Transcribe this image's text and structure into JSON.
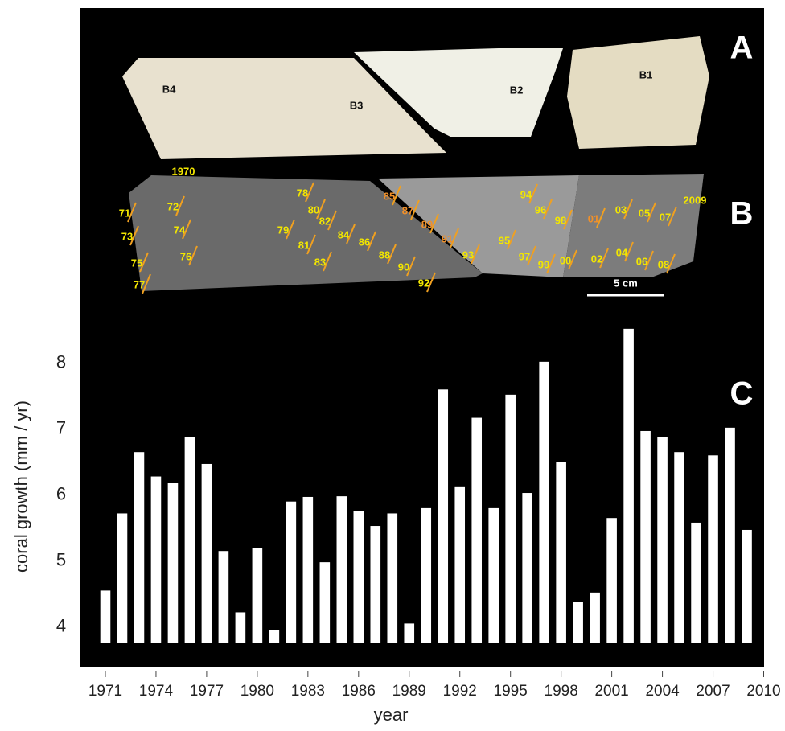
{
  "panel_a": {
    "label": "A",
    "labels": [
      "B4",
      "B3",
      "B2",
      "B1"
    ]
  },
  "panel_b": {
    "label": "B",
    "scale": "5 cm",
    "years": [
      "1970",
      "71",
      "72",
      "73",
      "74",
      "75",
      "76",
      "77",
      "78",
      "79",
      "80",
      "81",
      "82",
      "83",
      "84",
      "85",
      "86",
      "87",
      "88",
      "89",
      "90",
      "91",
      "92",
      "93",
      "94",
      "95",
      "96",
      "97",
      "98",
      "99",
      "00",
      "01",
      "02",
      "03",
      "04",
      "05",
      "06",
      "07",
      "08",
      "2009"
    ]
  },
  "chart_data": {
    "type": "bar",
    "annotation": "C",
    "xlabel": "year",
    "ylabel": "coral growth (mm / yr)",
    "x": [
      1971,
      1972,
      1973,
      1974,
      1975,
      1976,
      1977,
      1978,
      1979,
      1980,
      1981,
      1982,
      1983,
      1984,
      1985,
      1986,
      1987,
      1988,
      1989,
      1990,
      1991,
      1992,
      1993,
      1994,
      1995,
      1996,
      1997,
      1998,
      1999,
      2000,
      2001,
      2002,
      2003,
      2004,
      2005,
      2006,
      2007,
      2008,
      2009
    ],
    "values": [
      4.55,
      5.72,
      6.65,
      6.28,
      6.18,
      6.88,
      6.47,
      5.15,
      4.22,
      5.2,
      3.95,
      5.9,
      5.97,
      4.98,
      5.98,
      5.75,
      5.53,
      5.72,
      4.05,
      5.8,
      7.6,
      6.13,
      7.17,
      5.8,
      7.52,
      6.03,
      8.02,
      6.5,
      4.38,
      4.52,
      5.65,
      8.52,
      6.97,
      6.88,
      6.65,
      5.58,
      6.6,
      7.02,
      5.47
    ],
    "color": "#ffffff",
    "xlim": [
      1970,
      2010.5
    ],
    "xticks": [
      1971,
      1974,
      1977,
      1980,
      1983,
      1986,
      1989,
      1992,
      1995,
      1998,
      2001,
      2004,
      2007,
      2010
    ],
    "ylim": [
      3.75,
      8.75
    ],
    "yticks": [
      4,
      5,
      6,
      7,
      8
    ]
  }
}
